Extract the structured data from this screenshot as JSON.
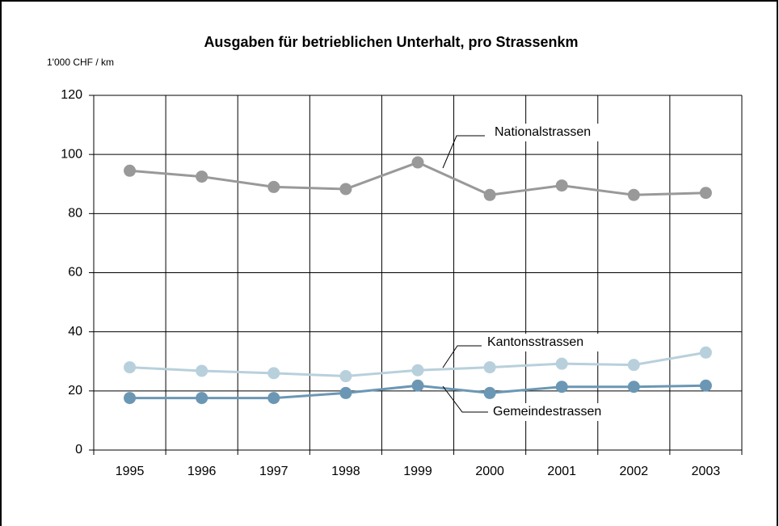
{
  "chart_data": {
    "type": "line",
    "title": "Ausgaben für betrieblichen Unterhalt, pro Strassenkm",
    "y_axis_label": "1'000 CHF / km",
    "categories": [
      "1995",
      "1996",
      "1997",
      "1998",
      "1999",
      "2000",
      "2001",
      "2002",
      "2003"
    ],
    "series": [
      {
        "name": "Nationalstrassen",
        "color": "#999999",
        "values": [
          94.5,
          92.5,
          89,
          88.3,
          97.3,
          86.3,
          89.5,
          86.3,
          87
        ]
      },
      {
        "name": "Kantonsstrassen",
        "color": "#b8d0dc",
        "values": [
          28,
          26.8,
          26,
          25,
          27,
          28,
          29.2,
          28.8,
          33
        ]
      },
      {
        "name": "Gemeindestrassen",
        "color": "#6b97b4",
        "values": [
          17.6,
          17.6,
          17.6,
          19.3,
          21.8,
          19.3,
          21.4,
          21.4,
          21.8
        ]
      }
    ],
    "ylim": [
      0,
      120
    ],
    "yticks": [
      0,
      20,
      40,
      60,
      80,
      100,
      120
    ],
    "grid": true
  }
}
